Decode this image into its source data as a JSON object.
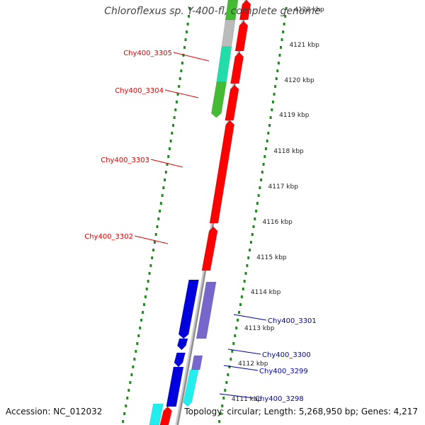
{
  "title": "Chloroflexus sp. Y-400-fl, complete genome",
  "accession": "Accession: NC_012032",
  "topology": "Topology: circular; Length: 5,268,950 bp; Genes: 4,217",
  "colors": {
    "cds_forward": "#ff0000",
    "cds_reverse": "#0000dd",
    "cds_reverse_light": "#7766cc",
    "gene_teal": "#22ddaa",
    "gene_green": "#44bb33",
    "gene_cyan": "#22eeee",
    "gene_gray": "#bbbbbb",
    "label_forward": "#dd0000",
    "label_reverse": "#0000aa",
    "ruler_dots": "#228822",
    "backbone": "#888888"
  },
  "kbp_ticks": [
    "4122 kbp",
    "4121 kbp",
    "4120 kbp",
    "4119 kbp",
    "4118 kbp",
    "4117 kbp",
    "4116 kbp",
    "4115 kbp",
    "4114 kbp",
    "4113 kbp",
    "4112 kbp",
    "4111 kbp"
  ],
  "gene_labels": [
    {
      "name": "Chy400_3305",
      "strand": "forward"
    },
    {
      "name": "Chy400_3304",
      "strand": "forward"
    },
    {
      "name": "Chy400_3303",
      "strand": "forward"
    },
    {
      "name": "Chy400_3302",
      "strand": "forward"
    },
    {
      "name": "Chy400_3301",
      "strand": "reverse"
    },
    {
      "name": "Chy400_3300",
      "strand": "reverse"
    },
    {
      "name": "Chy400_3299",
      "strand": "reverse"
    },
    {
      "name": "Chy400_3298",
      "strand": "reverse"
    }
  ]
}
